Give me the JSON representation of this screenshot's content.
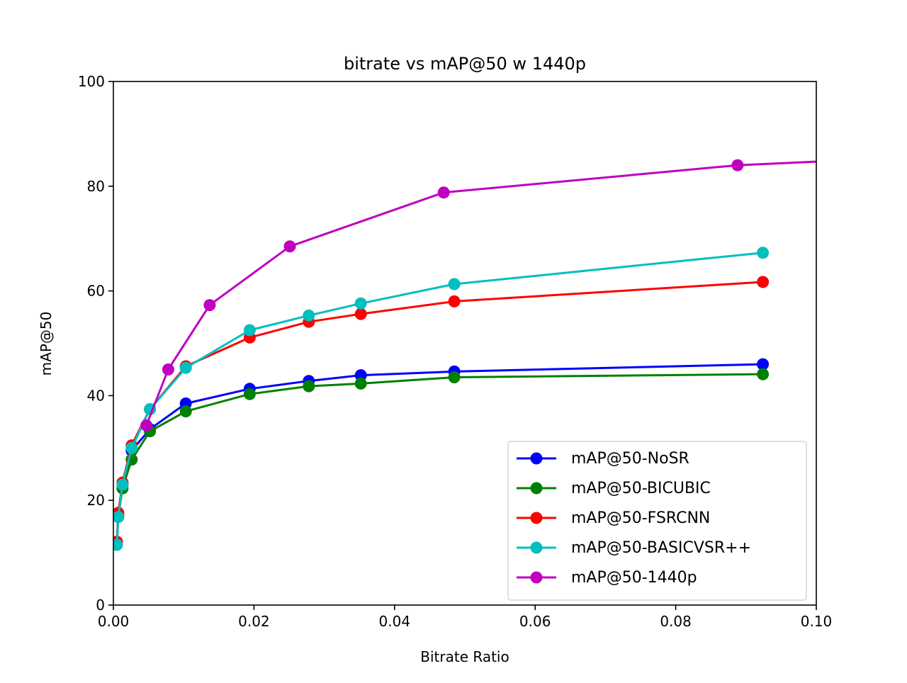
{
  "chart_data": {
    "type": "line",
    "title": "bitrate vs mAP@50 w 1440p",
    "xlabel": "Bitrate Ratio",
    "ylabel": "mAP@50",
    "xlim": [
      0.0,
      0.1
    ],
    "ylim": [
      0,
      100
    ],
    "xticks": [
      "0.00",
      "0.02",
      "0.04",
      "0.06",
      "0.08",
      "0.10"
    ],
    "yticks": [
      "0",
      "20",
      "40",
      "60",
      "80",
      "100"
    ],
    "grid": false,
    "legend_position": "lower-right",
    "marker": "circle",
    "series": [
      {
        "name": "mAP@50-NoSR",
        "color": "#0000ff",
        "x": [
          0.0005,
          0.0007,
          0.0013,
          0.0026,
          0.0052,
          0.0103,
          0.0194,
          0.0278,
          0.0352,
          0.0485,
          0.0924
        ],
        "y": [
          12.0,
          17.3,
          23.0,
          29.5,
          33.6,
          38.5,
          41.3,
          42.8,
          43.9,
          44.6,
          46.0
        ]
      },
      {
        "name": "mAP@50-BICUBIC",
        "color": "#008000",
        "x": [
          0.0005,
          0.0007,
          0.0013,
          0.0026,
          0.0052,
          0.0103,
          0.0194,
          0.0278,
          0.0352,
          0.0485,
          0.0924
        ],
        "y": [
          11.8,
          17.0,
          22.3,
          27.8,
          33.2,
          37.0,
          40.3,
          41.8,
          42.3,
          43.5,
          44.1
        ]
      },
      {
        "name": "mAP@50-FSRCNN",
        "color": "#ff0000",
        "x": [
          0.0005,
          0.0007,
          0.0013,
          0.0026,
          0.0052,
          0.0103,
          0.0194,
          0.0278,
          0.0352,
          0.0485,
          0.0924
        ],
        "y": [
          12.1,
          17.6,
          23.4,
          30.5,
          37.4,
          45.6,
          51.1,
          54.1,
          55.6,
          58.0,
          61.7
        ]
      },
      {
        "name": "mAP@50-BASICVSR++",
        "color": "#00bfbf",
        "x": [
          0.0005,
          0.0007,
          0.0013,
          0.0026,
          0.0052,
          0.0103,
          0.0194,
          0.0278,
          0.0352,
          0.0485,
          0.0924
        ],
        "y": [
          11.5,
          16.8,
          23.0,
          30.0,
          37.4,
          45.3,
          52.5,
          55.3,
          57.6,
          61.3,
          67.3
        ]
      },
      {
        "name": "mAP@50-1440p",
        "color": "#bf00bf",
        "x": [
          0.0047,
          0.0078,
          0.0137,
          0.0251,
          0.047,
          0.0888,
          0.11
        ],
        "y": [
          34.3,
          45.0,
          57.3,
          68.5,
          78.8,
          84.0,
          85.3
        ]
      }
    ]
  }
}
